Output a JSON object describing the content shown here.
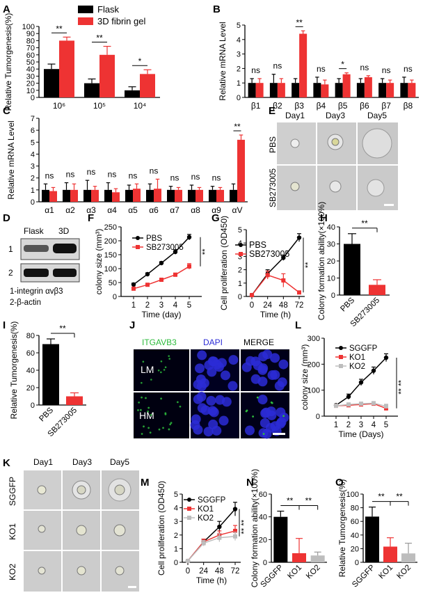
{
  "colors": {
    "black": "#000000",
    "red": "#ee3333",
    "gray": "#bdbdbd",
    "green": "#2dbb3c",
    "blue": "#2b2bd6",
    "micro_bg": "#cfcfcf",
    "fluor_bg": "#000010"
  },
  "chart_data": [
    {
      "panel": "A",
      "type": "bar",
      "ylabel": "Relative Tumorgenesis(%)",
      "ylim": [
        0,
        100
      ],
      "yticks": [
        0,
        10,
        20,
        30,
        40,
        50,
        60,
        70,
        80,
        90,
        100
      ],
      "categories": [
        "10⁶",
        "10⁵",
        "10⁴"
      ],
      "series": [
        {
          "name": "Flask",
          "color": "#000000",
          "values": [
            40,
            20,
            10
          ],
          "errors": [
            7,
            6,
            5
          ]
        },
        {
          "name": "3D fibrin gel",
          "color": "#ee3333",
          "values": [
            80,
            60,
            33
          ],
          "errors": [
            5,
            12,
            6
          ]
        }
      ],
      "annotations": [
        "**",
        "**",
        "*"
      ]
    },
    {
      "panel": "B",
      "type": "bar",
      "ylabel": "Relative mRNA Level",
      "ylim": [
        0,
        5
      ],
      "yticks": [
        0,
        1,
        2,
        3,
        4,
        5
      ],
      "categories": [
        "β1",
        "β2",
        "β3",
        "β4",
        "β5",
        "β6",
        "β7",
        "β8"
      ],
      "series": [
        {
          "name": "Flask",
          "color": "#000000",
          "values": [
            1,
            1,
            1,
            1,
            1,
            1,
            1,
            1
          ],
          "errors": [
            0.3,
            0.6,
            0.3,
            0.4,
            0.3,
            0.3,
            0.3,
            0.4
          ]
        },
        {
          "name": "3D fibrin gel",
          "color": "#ee3333",
          "values": [
            1,
            1,
            4.4,
            0.9,
            1.6,
            1.4,
            1,
            1
          ],
          "errors": [
            0.3,
            0.3,
            0.2,
            0.3,
            0.1,
            0.1,
            0.2,
            0.2
          ]
        }
      ],
      "annotations": [
        "ns",
        "ns",
        "**",
        "ns",
        "*",
        "ns",
        "ns",
        "ns"
      ]
    },
    {
      "panel": "C",
      "type": "bar",
      "ylabel": "Relative mRNA Level",
      "ylim": [
        0,
        7
      ],
      "yticks": [
        0,
        1,
        2,
        3,
        4,
        5,
        6,
        7
      ],
      "categories": [
        "α1",
        "α2",
        "α3",
        "α4",
        "α5",
        "α6",
        "α7",
        "α8",
        "α9",
        "αV"
      ],
      "series": [
        {
          "name": "Flask",
          "color": "#000000",
          "values": [
            1,
            1,
            1,
            1,
            1,
            1,
            1,
            1,
            1,
            1
          ],
          "errors": [
            0.5,
            0.6,
            0.8,
            0.6,
            0.4,
            0.5,
            0.3,
            0.4,
            0.3,
            0.5
          ]
        },
        {
          "name": "3D fibrin gel",
          "color": "#ee3333",
          "values": [
            0.9,
            1,
            1,
            0.8,
            1.1,
            1.1,
            1,
            1,
            1,
            5.2
          ],
          "errors": [
            0.3,
            0.5,
            0.3,
            0.3,
            0.4,
            0.8,
            0.2,
            0.2,
            0.2,
            0.4
          ]
        }
      ],
      "annotations": [
        "ns",
        "ns",
        "ns",
        "ns",
        "ns",
        "ns",
        "ns",
        "ns",
        "ns",
        "**"
      ]
    },
    {
      "panel": "F",
      "type": "line",
      "ylabel": "colony size (mm³)",
      "xlabel": "Time (day)",
      "xlim": [
        0.5,
        5.5
      ],
      "ylim": [
        0,
        250
      ],
      "yticks": [
        0,
        50,
        100,
        150,
        200,
        250
      ],
      "xticks": [
        1,
        2,
        3,
        4,
        5
      ],
      "series": [
        {
          "name": "PBS",
          "color": "#000000",
          "x": [
            1,
            2,
            3,
            4,
            5
          ],
          "y": [
            43,
            80,
            120,
            160,
            213
          ],
          "errors": [
            5,
            5,
            5,
            8,
            10
          ]
        },
        {
          "name": "SB273005",
          "color": "#ee3333",
          "x": [
            1,
            2,
            3,
            4,
            5
          ],
          "y": [
            28,
            42,
            60,
            78,
            108
          ],
          "errors": [
            4,
            4,
            5,
            6,
            10
          ]
        }
      ],
      "annotations": [
        "**"
      ]
    },
    {
      "panel": "G",
      "type": "line",
      "ylabel": "Cell proliferation (OD450)",
      "xlabel": "Time (h)",
      "xlim": [
        0,
        72
      ],
      "ylim": [
        0,
        5
      ],
      "yticks": [
        0,
        1,
        2,
        3,
        4,
        5
      ],
      "xticks": [
        0,
        24,
        48,
        72
      ],
      "series": [
        {
          "name": "PBS",
          "color": "#000000",
          "x": [
            0,
            24,
            48,
            72
          ],
          "y": [
            0.1,
            1.7,
            2.9,
            4.4
          ],
          "errors": [
            0.05,
            0.3,
            0.2,
            0.3
          ]
        },
        {
          "name": "SB273005",
          "color": "#ee3333",
          "x": [
            0,
            24,
            48,
            72
          ],
          "y": [
            0.1,
            1.6,
            1.2,
            0.3
          ],
          "errors": [
            0.05,
            0.3,
            0.5,
            0.1
          ]
        }
      ],
      "annotations": [
        "**"
      ]
    },
    {
      "panel": "H",
      "type": "bar",
      "ylabel": "Colony formation ability(×100%)",
      "ylim": [
        0,
        40
      ],
      "yticks": [
        0,
        10,
        20,
        30,
        40
      ],
      "categories": [
        "PBS",
        "SB273005"
      ],
      "series": [
        {
          "name": "",
          "values": [
            30,
            6
          ],
          "errors": [
            6,
            3
          ],
          "colors": [
            "#000000",
            "#ee3333"
          ]
        }
      ],
      "annotations": [
        "**"
      ]
    },
    {
      "panel": "I",
      "type": "bar",
      "ylabel": "Relative Tumorgenesis(%)",
      "ylim": [
        0,
        80
      ],
      "yticks": [
        0,
        20,
        40,
        60,
        80
      ],
      "categories": [
        "PBS",
        "SB273005"
      ],
      "series": [
        {
          "name": "",
          "values": [
            70,
            10
          ],
          "errors": [
            6,
            4
          ],
          "colors": [
            "#000000",
            "#ee3333"
          ]
        }
      ],
      "annotations": [
        "**"
      ]
    },
    {
      "panel": "L",
      "type": "line",
      "ylabel": "colony size (mm³)",
      "xlabel": "Time (Days)",
      "xlim": [
        0.5,
        5.5
      ],
      "ylim": [
        0,
        300
      ],
      "yticks": [
        0,
        100,
        200,
        300
      ],
      "xticks": [
        1,
        2,
        3,
        4,
        5
      ],
      "series": [
        {
          "name": "SGGFP",
          "color": "#000000",
          "x": [
            1,
            2,
            3,
            4,
            5
          ],
          "y": [
            42,
            75,
            130,
            175,
            225
          ],
          "errors": [
            5,
            10,
            12,
            14,
            15
          ]
        },
        {
          "name": "KO1",
          "color": "#ee3333",
          "x": [
            1,
            2,
            3,
            4,
            5
          ],
          "y": [
            40,
            42,
            45,
            48,
            30
          ],
          "errors": [
            5,
            5,
            5,
            6,
            8
          ]
        },
        {
          "name": "KO2",
          "color": "#bdbdbd",
          "x": [
            1,
            2,
            3,
            4,
            5
          ],
          "y": [
            40,
            45,
            48,
            50,
            38
          ],
          "errors": [
            5,
            5,
            5,
            6,
            8
          ]
        }
      ],
      "annotations": [
        "**",
        "**"
      ]
    },
    {
      "panel": "M",
      "type": "line",
      "ylabel": "Cell proliferation (OD450)",
      "xlabel": "Time (h)",
      "xlim": [
        0,
        72
      ],
      "ylim": [
        0,
        5
      ],
      "yticks": [
        0,
        1,
        2,
        3,
        4,
        5
      ],
      "xticks": [
        0,
        24,
        48,
        72
      ],
      "series": [
        {
          "name": "SGGFP",
          "color": "#000000",
          "x": [
            0,
            24,
            48,
            72
          ],
          "y": [
            0.1,
            1.5,
            2.6,
            3.9
          ],
          "errors": [
            0.05,
            0.2,
            0.4,
            0.5
          ]
        },
        {
          "name": "KO1",
          "color": "#ee3333",
          "x": [
            0,
            24,
            48,
            72
          ],
          "y": [
            0.1,
            1.5,
            2.0,
            2.3
          ],
          "errors": [
            0.05,
            0.2,
            0.3,
            0.4
          ]
        },
        {
          "name": "KO2",
          "color": "#bdbdbd",
          "x": [
            0,
            24,
            48,
            72
          ],
          "y": [
            0.1,
            1.4,
            1.8,
            1.9
          ],
          "errors": [
            0.05,
            0.2,
            0.3,
            0.3
          ]
        }
      ],
      "annotations": [
        "**",
        "**"
      ]
    },
    {
      "panel": "N",
      "type": "bar",
      "ylabel": "Colony formation ability(×100%)",
      "ylim": [
        0,
        60
      ],
      "yticks": [
        0,
        20,
        40,
        60
      ],
      "categories": [
        "SGGFP",
        "KO1",
        "KO2"
      ],
      "series": [
        {
          "name": "",
          "values": [
            40,
            8,
            6
          ],
          "errors": [
            5,
            13,
            3
          ],
          "colors": [
            "#000000",
            "#ee3333",
            "#bdbdbd"
          ]
        }
      ],
      "annotations": [
        "**",
        "**"
      ]
    },
    {
      "panel": "O",
      "type": "bar",
      "ylabel": "Relative Tumorgenesis(%)",
      "ylim": [
        0,
        100
      ],
      "yticks": [
        0,
        20,
        40,
        60,
        80,
        100
      ],
      "categories": [
        "SGGFP",
        "KO1",
        "KO2"
      ],
      "series": [
        {
          "name": "",
          "values": [
            67,
            23,
            13
          ],
          "errors": [
            14,
            13,
            15
          ],
          "colors": [
            "#000000",
            "#ee3333",
            "#bdbdbd"
          ]
        }
      ],
      "annotations": [
        "**",
        "**"
      ]
    }
  ],
  "labels": {
    "panel_A": "A",
    "panel_B": "B",
    "panel_C": "C",
    "panel_D": "D",
    "panel_E": "E",
    "panel_F": "F",
    "panel_G": "G",
    "panel_H": "H",
    "panel_I": "I",
    "panel_J": "J",
    "panel_K": "K",
    "panel_L": "L",
    "panel_M": "M",
    "panel_N": "N",
    "panel_O": "O",
    "legend_flask": "Flask",
    "legend_gel": "3D fibrin gel",
    "f_legend_pbs": "PBS",
    "f_legend_sb": "SB273005",
    "g_legend_pbs": "PBS",
    "g_legend_sb": "SB273005",
    "l_legend_1": "SGGFP",
    "l_legend_2": "KO1",
    "l_legend_3": "KO2",
    "m_legend_1": "SGGFP",
    "m_legend_2": "KO1",
    "m_legend_3": "KO2"
  },
  "panel_e": {
    "cols": [
      "Day1",
      "Day3",
      "Day5"
    ],
    "rows": [
      "PBS",
      "SB273005"
    ]
  },
  "panel_k": {
    "cols": [
      "Day1",
      "Day3",
      "Day5"
    ],
    "rows": [
      "SGGFP",
      "KO1",
      "KO2"
    ]
  },
  "panel_d": {
    "col1": "Flask",
    "col2": "3D",
    "row1": "1",
    "row2": "2",
    "caption1": "1-integrin αvβ3",
    "caption2": "2-β-actin"
  },
  "panel_j": {
    "col1": "ITGAVB3",
    "col2": "DAPI",
    "col3": "MERGE",
    "row1": "LM",
    "row2": "HM"
  }
}
